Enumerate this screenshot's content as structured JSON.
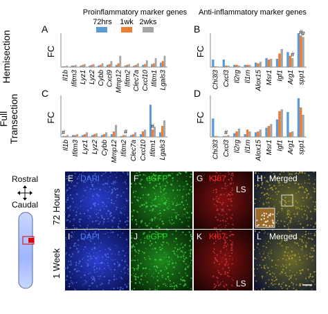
{
  "headers": {
    "pro": "Proinflammatory marker genes",
    "anti": "Anti-inflammatory marker genes"
  },
  "legend": {
    "entries": [
      {
        "label": "72hrs",
        "color": "#5b9bd5"
      },
      {
        "label": "1wk",
        "color": "#ed7d31"
      },
      {
        "label": "2wks",
        "color": "#a5a5a5"
      }
    ]
  },
  "row_labels": {
    "hemi": "Hemisection",
    "full_l1": "Full",
    "full_l2": "Transection"
  },
  "colors": {
    "s72": "#5b9bd5",
    "s1w": "#ed7d31",
    "s2w": "#a5a5a5",
    "red": "#ff2020",
    "green": "#20e020",
    "blue": "#4a7bff"
  },
  "chart_data": [
    {
      "panel": "A",
      "type": "bar",
      "ylabel": "FC",
      "ylim": [
        0,
        45
      ],
      "categories": [
        "Il1b",
        "Ifitm3",
        "Lyz1",
        "Lyz2",
        "Cybb",
        "Cxcl9",
        "Mmp12",
        "Ifitm2",
        "Clec7a",
        "Cxcl10",
        "Ifitm1",
        "Lgals3"
      ],
      "series": [
        {
          "name": "72hrs",
          "values": [
            1,
            2,
            2,
            2,
            2,
            3,
            3,
            2,
            2,
            3,
            4,
            6
          ]
        },
        {
          "name": "1wk",
          "values": [
            1,
            2,
            3,
            3,
            3,
            4,
            5,
            3,
            3,
            4,
            5,
            8
          ]
        },
        {
          "name": "2wks",
          "values": [
            2,
            3,
            4,
            4,
            5,
            8,
            15,
            4,
            5,
            9,
            12,
            15
          ]
        }
      ]
    },
    {
      "panel": "B",
      "type": "bar",
      "ylabel": "FC",
      "ylim": [
        0,
        45
      ],
      "categories": [
        "Chi3l3",
        "Cxcl3",
        "Il2rg",
        "Il1rn",
        "Alox15",
        "Msr1",
        "Igf1",
        "Arg1",
        "spp1"
      ],
      "series": [
        {
          "name": "72hrs",
          "values": [
            10,
            10,
            3,
            3,
            6,
            12,
            11,
            20,
            45
          ]
        },
        {
          "name": "1wk",
          "values": [
            1,
            2,
            3,
            3,
            5,
            10,
            18,
            15,
            42
          ]
        },
        {
          "name": "2wks",
          "values": [
            1,
            2,
            2,
            3,
            7,
            11,
            24,
            12,
            40
          ]
        }
      ],
      "annotations": [
        "#",
        "#",
        "#"
      ]
    },
    {
      "panel": "C",
      "type": "bar",
      "ylabel": "FC",
      "ylim": [
        0,
        45
      ],
      "categories": [
        "Il1b",
        "Ifitm3",
        "Lyz1",
        "Lyz2",
        "Cybb",
        "Mmp12",
        "Ifitm2",
        "Clec7a",
        "Cxcl10",
        "Ifitm1",
        "Lgals3"
      ],
      "series": [
        {
          "name": "72hrs",
          "values": [
            1,
            2,
            2,
            2,
            2,
            3,
            1,
            2,
            3,
            35,
            5
          ]
        },
        {
          "name": "1wk",
          "values": [
            1,
            2,
            3,
            3,
            3,
            6,
            2,
            3,
            6,
            8,
            12
          ]
        },
        {
          "name": "2wks",
          "values": [
            2,
            3,
            5,
            4,
            5,
            13,
            2,
            5,
            8,
            11,
            18
          ]
        }
      ],
      "annotations": [
        "#",
        "#",
        "#"
      ]
    },
    {
      "panel": "D",
      "type": "bar",
      "ylabel": "FC",
      "ylim": [
        0,
        45
      ],
      "categories": [
        "Chi3l3",
        "Cxcl3",
        "Il2rg",
        "Il1rn",
        "Alox15",
        "Msr1",
        "Igf1",
        "Arg1",
        "spp1"
      ],
      "series": [
        {
          "name": "72hrs",
          "values": [
            20,
            1,
            4,
            3,
            5,
            10,
            19,
            27,
            42
          ]
        },
        {
          "name": "1wk",
          "values": [
            1,
            1,
            6,
            8,
            6,
            12,
            28,
            5,
            32
          ]
        },
        {
          "name": "2wks",
          "values": [
            1,
            2,
            9,
            6,
            8,
            14,
            30,
            6,
            24
          ]
        }
      ],
      "annotations": [
        "#"
      ]
    }
  ],
  "micro": {
    "rostral": "Rostral",
    "caudal": "Caudal",
    "row1": "72 Hours",
    "row2": "1 Week",
    "panels": [
      {
        "letter": "E",
        "label": "DAPI",
        "color": "#4a7bff"
      },
      {
        "letter": "F",
        "label": "eGFP",
        "color": "#20e020"
      },
      {
        "letter": "G",
        "label": "KI67",
        "color": "#ff2020",
        "extra": "LS"
      },
      {
        "letter": "H",
        "label": "Merged",
        "color": "#ffffff"
      },
      {
        "letter": "I",
        "label": "DAPI",
        "color": "#4a7bff"
      },
      {
        "letter": "J",
        "label": "eGFP",
        "color": "#20e020"
      },
      {
        "letter": "K",
        "label": "KI67",
        "color": "#ff2020",
        "extra": "LS"
      },
      {
        "letter": "L",
        "label": "Merged",
        "color": "#ffffff"
      }
    ]
  }
}
